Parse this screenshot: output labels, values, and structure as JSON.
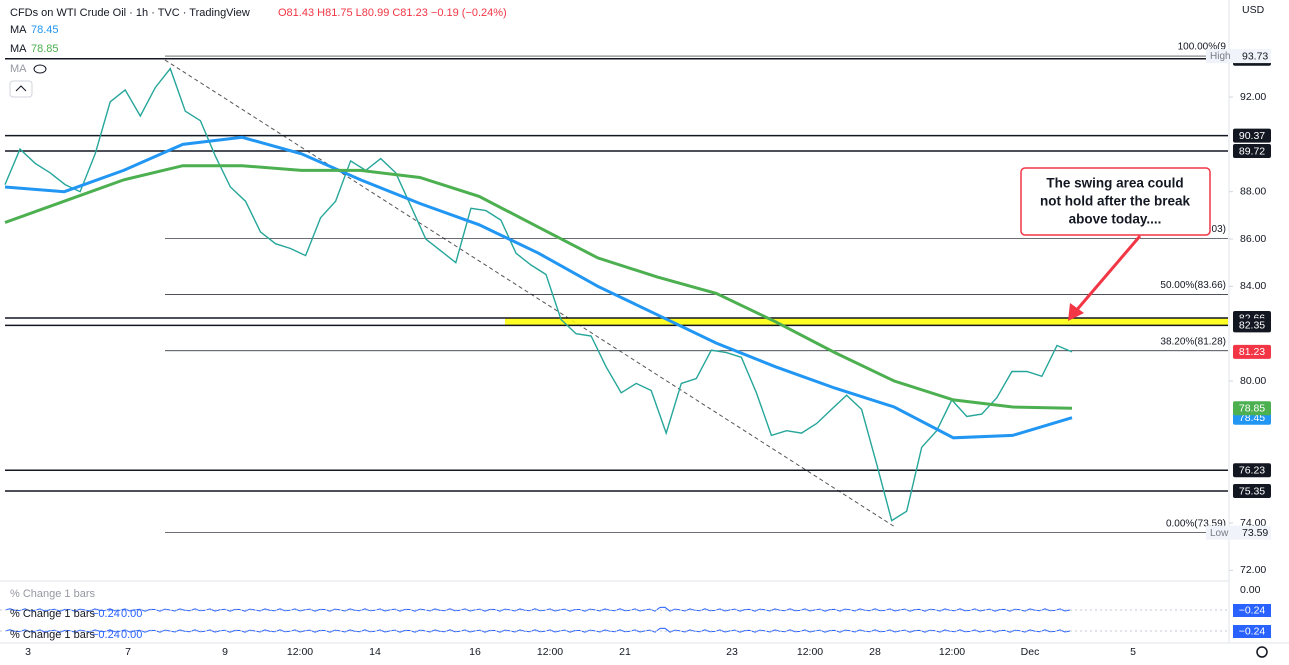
{
  "header": {
    "title": "CFDs on WTI Crude Oil · 1h · TVC · TradingView",
    "ohlc": "O81.43 H81.75 L80.99 C81.23 −0.19 (−0.24%)",
    "currency": "USD"
  },
  "chart_data": {
    "type": "line",
    "ylim": [
      71.38,
      96.1
    ],
    "yticks": [
      {
        "value": 72,
        "label": "72.00"
      },
      {
        "value": 74,
        "label": "74.00"
      },
      {
        "value": 80,
        "label": "80.00"
      },
      {
        "value": 84,
        "label": "84.00"
      },
      {
        "value": 86,
        "label": "86.00"
      },
      {
        "value": 88,
        "label": "88.00"
      },
      {
        "value": 92,
        "label": "92.00"
      }
    ],
    "xticks": [
      "3",
      "7",
      "9",
      "12:00",
      "14",
      "16",
      "12:00",
      "21",
      "23",
      "12:00",
      "28",
      "12:00",
      "Dec",
      "5"
    ],
    "series": [
      {
        "color": "#26a69a",
        "values": [
          88.3,
          89.8,
          89.2,
          88.8,
          88.3,
          88.0,
          89.6,
          91.8,
          92.3,
          91.2,
          92.4,
          93.2,
          91.4,
          91.0,
          89.5,
          88.2,
          87.6,
          86.3,
          85.8,
          85.6,
          85.3,
          86.9,
          87.6,
          89.3,
          88.9,
          89.4,
          88.8,
          87.4,
          86.0,
          85.5,
          85.0,
          87.3,
          87.2,
          86.8,
          85.4,
          84.9,
          84.5,
          82.6,
          82.0,
          81.9,
          80.6,
          79.5,
          79.9,
          79.6,
          77.8,
          79.9,
          80.1,
          81.3,
          81.2,
          81.0,
          79.5,
          77.7,
          77.9,
          77.8,
          78.2,
          78.8,
          79.4,
          78.8,
          76.5,
          74.1,
          74.5,
          77.2,
          77.9,
          79.2,
          78.5,
          78.6,
          79.3,
          80.4,
          80.4,
          80.2,
          81.5,
          81.23
        ]
      },
      {
        "name": "MA",
        "color": "#2196f3",
        "values": [
          88.2,
          88.0,
          88.9,
          90.0,
          90.3,
          89.6,
          88.5,
          87.5,
          86.6,
          85.4,
          84.0,
          82.8,
          81.6,
          80.6,
          79.7,
          78.9,
          77.6,
          77.7,
          78.45
        ]
      },
      {
        "name": "MA",
        "color": "#4caf50",
        "values": [
          86.7,
          87.6,
          88.5,
          89.1,
          89.1,
          88.9,
          88.9,
          88.6,
          87.8,
          86.5,
          85.2,
          84.4,
          83.7,
          82.5,
          81.2,
          80.0,
          79.2,
          78.9,
          78.85
        ]
      }
    ],
    "levels": [
      93.62,
      90.37,
      89.72,
      82.66,
      82.35,
      76.23,
      75.35
    ],
    "fib_levels": [
      {
        "value": 93.73,
        "label": "100.00%(9"
      },
      {
        "value": 86.03,
        "label": ".03)"
      },
      {
        "value": 83.66,
        "label": "50.00%(83.66)"
      },
      {
        "value": 81.28,
        "label": "38.20%(81.28)"
      },
      {
        "value": 73.59,
        "label": "0.00%(73.59)"
      }
    ],
    "zone": {
      "from": 82.35,
      "to": 82.66,
      "color": "#ffff00"
    },
    "high": {
      "label": "High",
      "value": 93.73
    },
    "low": {
      "label": "Low",
      "value": 73.59
    },
    "annotation": [
      "The swing area could",
      "not hold after the break",
      "above today...."
    ]
  },
  "indicator_panes": {
    "title": "% Change 1 bars",
    "axis_label": "0.00",
    "rows": [
      {
        "title": "% Change 1 bars",
        "value": -0.24,
        "value_label": "−0.24",
        "zero": "0.00"
      },
      {
        "title": "% Change 1 bars",
        "value": -0.24,
        "value_label": "−0.24",
        "zero": "0.00"
      }
    ]
  }
}
